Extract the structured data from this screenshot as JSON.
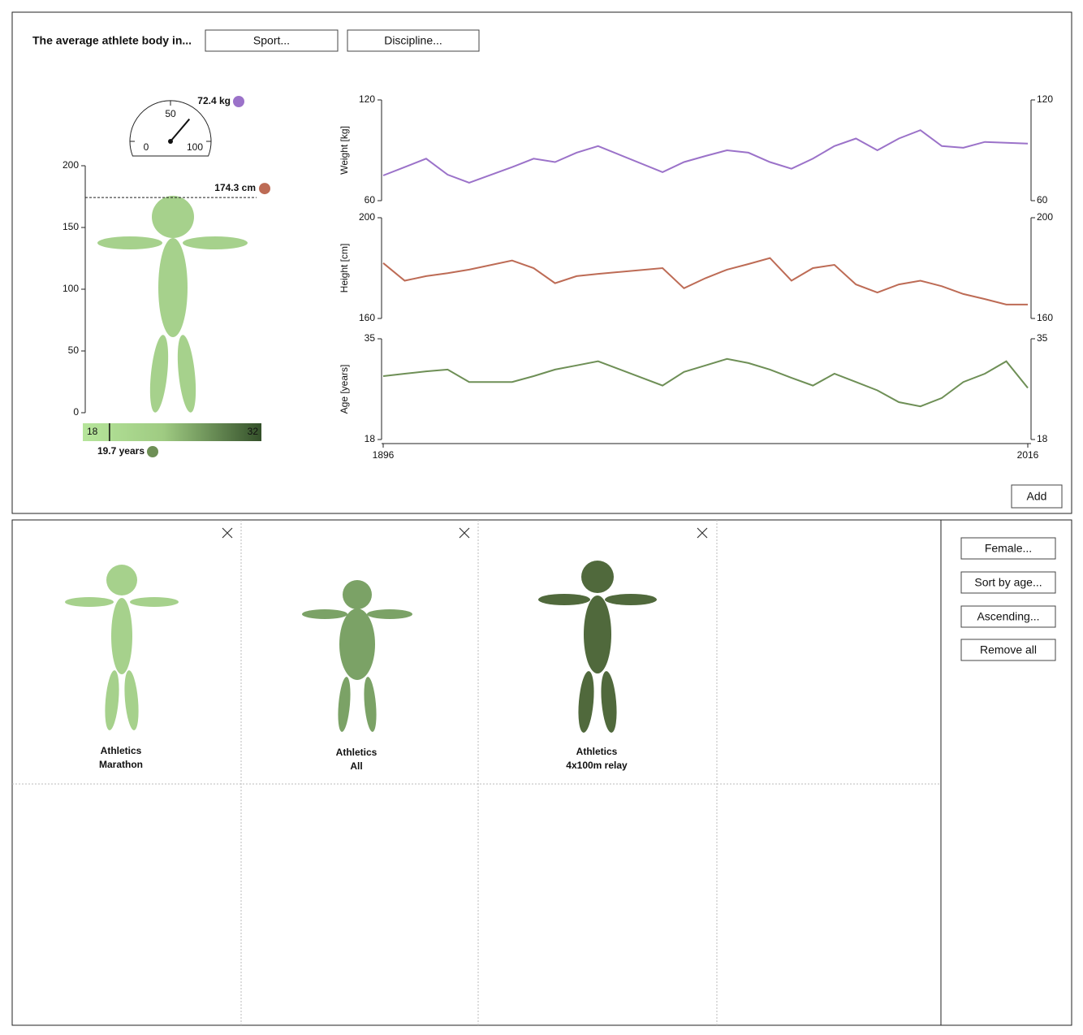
{
  "header": {
    "title": "The average athlete body in...",
    "buttons": [
      "Sport...",
      "Discipline..."
    ]
  },
  "body": {
    "weight": {
      "value": 72.4,
      "value_label": "72.4 kg",
      "lim": [
        0,
        100
      ],
      "ticks": [
        0,
        50,
        100
      ]
    },
    "height": {
      "value": 174.3,
      "value_label": "174.3 cm",
      "ylim": [
        0,
        200
      ],
      "yticks": [
        0,
        50,
        100,
        150,
        200
      ]
    },
    "age": {
      "value": 19.7,
      "value_label": "19.7 years",
      "lim": [
        18,
        32
      ]
    }
  },
  "chart_data": [
    {
      "type": "line",
      "ylabel": "Weight [kg]",
      "color": "#9b72c9",
      "x": [
        1896,
        1900,
        1904,
        1908,
        1912,
        1920,
        1924,
        1928,
        1932,
        1936,
        1948,
        1952,
        1956,
        1960,
        1964,
        1968,
        1972,
        1976,
        1980,
        1984,
        1988,
        1992,
        1996,
        2000,
        2004,
        2008,
        2012,
        2016
      ],
      "values": [
        75,
        80,
        85,
        75.5,
        70.7,
        80,
        85,
        83,
        88.6,
        92.5,
        77,
        83,
        86.6,
        90,
        88.6,
        83,
        79,
        85,
        92.5,
        97,
        90,
        97,
        102,
        92.5,
        91.5,
        95,
        94.5,
        94
      ],
      "xlim": [
        1896,
        2016
      ],
      "ylim": [
        60,
        120
      ],
      "yticks": [
        60,
        120
      ],
      "y2lim": [
        60,
        120
      ],
      "y2ticks": [
        60,
        120
      ]
    },
    {
      "type": "line",
      "ylabel": "Height [cm]",
      "color": "#bd6b55",
      "x": [
        1896,
        1900,
        1904,
        1908,
        1912,
        1920,
        1924,
        1928,
        1932,
        1936,
        1948,
        1952,
        1956,
        1960,
        1964,
        1968,
        1972,
        1976,
        1980,
        1984,
        1988,
        1992,
        1996,
        2000,
        2004,
        2008,
        2012,
        2016
      ],
      "values": [
        182,
        175,
        176.8,
        178,
        179.4,
        183,
        180,
        174,
        176.8,
        177.7,
        180,
        172,
        176,
        179.4,
        181.6,
        184,
        175,
        180,
        181.3,
        173.5,
        170.3,
        173.5,
        175,
        172.8,
        169.7,
        167.7,
        165.5,
        165.5
      ],
      "xlim": [
        1896,
        2016
      ],
      "ylim": [
        160,
        200
      ],
      "yticks": [
        160,
        200
      ],
      "y2lim": [
        160,
        200
      ],
      "y2ticks": [
        160,
        200
      ]
    },
    {
      "type": "line",
      "ylabel": "Age [years]",
      "color": "#6e8f56",
      "x": [
        1896,
        1900,
        1904,
        1908,
        1912,
        1920,
        1924,
        1928,
        1932,
        1936,
        1948,
        1952,
        1956,
        1960,
        1964,
        1968,
        1972,
        1976,
        1980,
        1984,
        1988,
        1992,
        1996,
        2000,
        2004,
        2008,
        2012,
        2016
      ],
      "values": [
        28.7,
        29.1,
        29.5,
        29.8,
        27.7,
        27.7,
        28.7,
        29.8,
        30.5,
        31.2,
        27.1,
        29.4,
        30.5,
        31.6,
        30.9,
        29.8,
        28.4,
        27.1,
        29.1,
        27.7,
        26.3,
        24.3,
        23.6,
        25,
        27.7,
        29.1,
        31.2,
        26.7
      ],
      "xlim": [
        1896,
        2016
      ],
      "xticks": [
        1896,
        2016
      ],
      "ylim": [
        18,
        35
      ],
      "yticks": [
        18,
        35
      ],
      "y2lim": [
        18,
        35
      ],
      "y2ticks": [
        18,
        35
      ]
    }
  ],
  "add_button": "Add",
  "cards": [
    {
      "sport": "Athletics",
      "discipline": "Marathon"
    },
    {
      "sport": "Athletics",
      "discipline": "All"
    },
    {
      "sport": "Athletics",
      "discipline": "4x100m relay"
    }
  ],
  "controls": [
    "Female...",
    "Sort by age...",
    "Ascending...",
    "Remove all"
  ]
}
